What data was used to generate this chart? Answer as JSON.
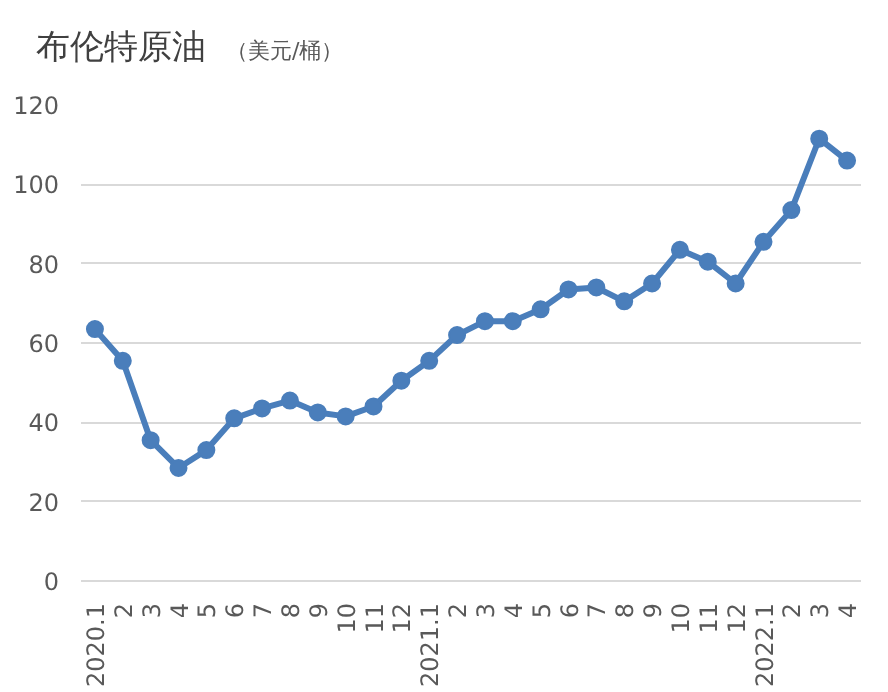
{
  "chart_data": {
    "type": "line",
    "title": "布伦特原油",
    "subtitle": "（美元/桶）",
    "categories": [
      "2020.1",
      "2",
      "3",
      "4",
      "5",
      "6",
      "7",
      "8",
      "9",
      "10",
      "11",
      "12",
      "2021.1",
      "2",
      "3",
      "4",
      "5",
      "6",
      "7",
      "8",
      "9",
      "10",
      "11",
      "12",
      "2022.1",
      "2",
      "3",
      "4"
    ],
    "series": [
      {
        "color": "#4a7ebb",
        "values": [
          63.5,
          55.5,
          35.5,
          28.5,
          33,
          41,
          43.5,
          45.5,
          42.5,
          41.5,
          44,
          50.5,
          55.5,
          62,
          65.5,
          65.5,
          68.5,
          73.5,
          74,
          70.5,
          75,
          83.5,
          80.5,
          75,
          85.5,
          93.5,
          111.5,
          106
        ]
      }
    ],
    "ylim": [
      0,
      120
    ],
    "yticks": [
      0,
      20,
      40,
      60,
      80,
      100,
      120
    ],
    "grid": "y",
    "marker": "circle",
    "line_style": "solid"
  }
}
